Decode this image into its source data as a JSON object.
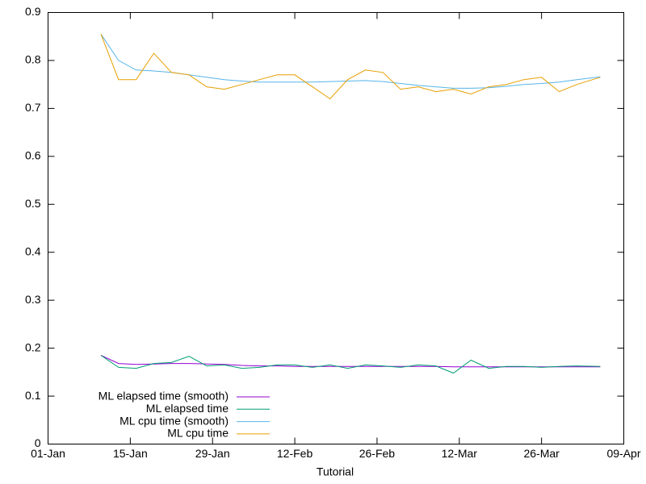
{
  "chart_data": {
    "type": "line",
    "xlabel": "Tutorial",
    "x": [
      "10-Jan",
      "13-Jan",
      "16-Jan",
      "19-Jan",
      "22-Jan",
      "25-Jan",
      "28-Jan",
      "31-Jan",
      "03-Feb",
      "06-Feb",
      "09-Feb",
      "12-Feb",
      "15-Feb",
      "18-Feb",
      "21-Feb",
      "24-Feb",
      "27-Feb",
      "02-Mar",
      "05-Mar",
      "08-Mar",
      "11-Mar",
      "14-Mar",
      "17-Mar",
      "20-Mar",
      "23-Mar",
      "26-Mar",
      "29-Mar",
      "01-Apr",
      "05-Apr"
    ],
    "xlim": [
      "01-Jan",
      "09-Apr"
    ],
    "xticks": [
      "01-Jan",
      "15-Jan",
      "29-Jan",
      "12-Feb",
      "26-Feb",
      "12-Mar",
      "26-Mar",
      "09-Apr"
    ],
    "ylim": [
      0,
      0.9
    ],
    "yticks": [
      0,
      0.1,
      0.2,
      0.3,
      0.4,
      0.5,
      0.6,
      0.7,
      0.8,
      0.9
    ],
    "grid": false,
    "legend": "bottom-left",
    "series": [
      {
        "name": "ML elapsed time (smooth)",
        "color": "#9400d3",
        "values": [
          0.185,
          0.168,
          0.166,
          0.167,
          0.168,
          0.168,
          0.167,
          0.166,
          0.164,
          0.163,
          0.163,
          0.162,
          0.162,
          0.162,
          0.162,
          0.162,
          0.162,
          0.162,
          0.162,
          0.162,
          0.161,
          0.161,
          0.161,
          0.161,
          0.161,
          0.161,
          0.161,
          0.161,
          0.161
        ]
      },
      {
        "name": "ML elapsed time",
        "color": "#009e73",
        "values": [
          0.185,
          0.16,
          0.158,
          0.168,
          0.17,
          0.183,
          0.163,
          0.165,
          0.158,
          0.16,
          0.165,
          0.165,
          0.16,
          0.165,
          0.158,
          0.165,
          0.163,
          0.16,
          0.165,
          0.163,
          0.148,
          0.175,
          0.158,
          0.162,
          0.162,
          0.16,
          0.162,
          0.163,
          0.162
        ]
      },
      {
        "name": "ML cpu time (smooth)",
        "color": "#56b4e9",
        "values": [
          0.855,
          0.8,
          0.78,
          0.778,
          0.775,
          0.77,
          0.765,
          0.76,
          0.757,
          0.755,
          0.755,
          0.755,
          0.755,
          0.756,
          0.757,
          0.758,
          0.756,
          0.752,
          0.748,
          0.745,
          0.742,
          0.742,
          0.743,
          0.746,
          0.75,
          0.752,
          0.755,
          0.76,
          0.766
        ]
      },
      {
        "name": "ML cpu time",
        "color": "#e69f00",
        "values": [
          0.855,
          0.76,
          0.76,
          0.815,
          0.775,
          0.77,
          0.745,
          0.74,
          0.75,
          0.76,
          0.77,
          0.77,
          0.745,
          0.72,
          0.76,
          0.78,
          0.775,
          0.74,
          0.745,
          0.735,
          0.74,
          0.73,
          0.745,
          0.75,
          0.76,
          0.765,
          0.735,
          0.75,
          0.765
        ]
      }
    ]
  }
}
